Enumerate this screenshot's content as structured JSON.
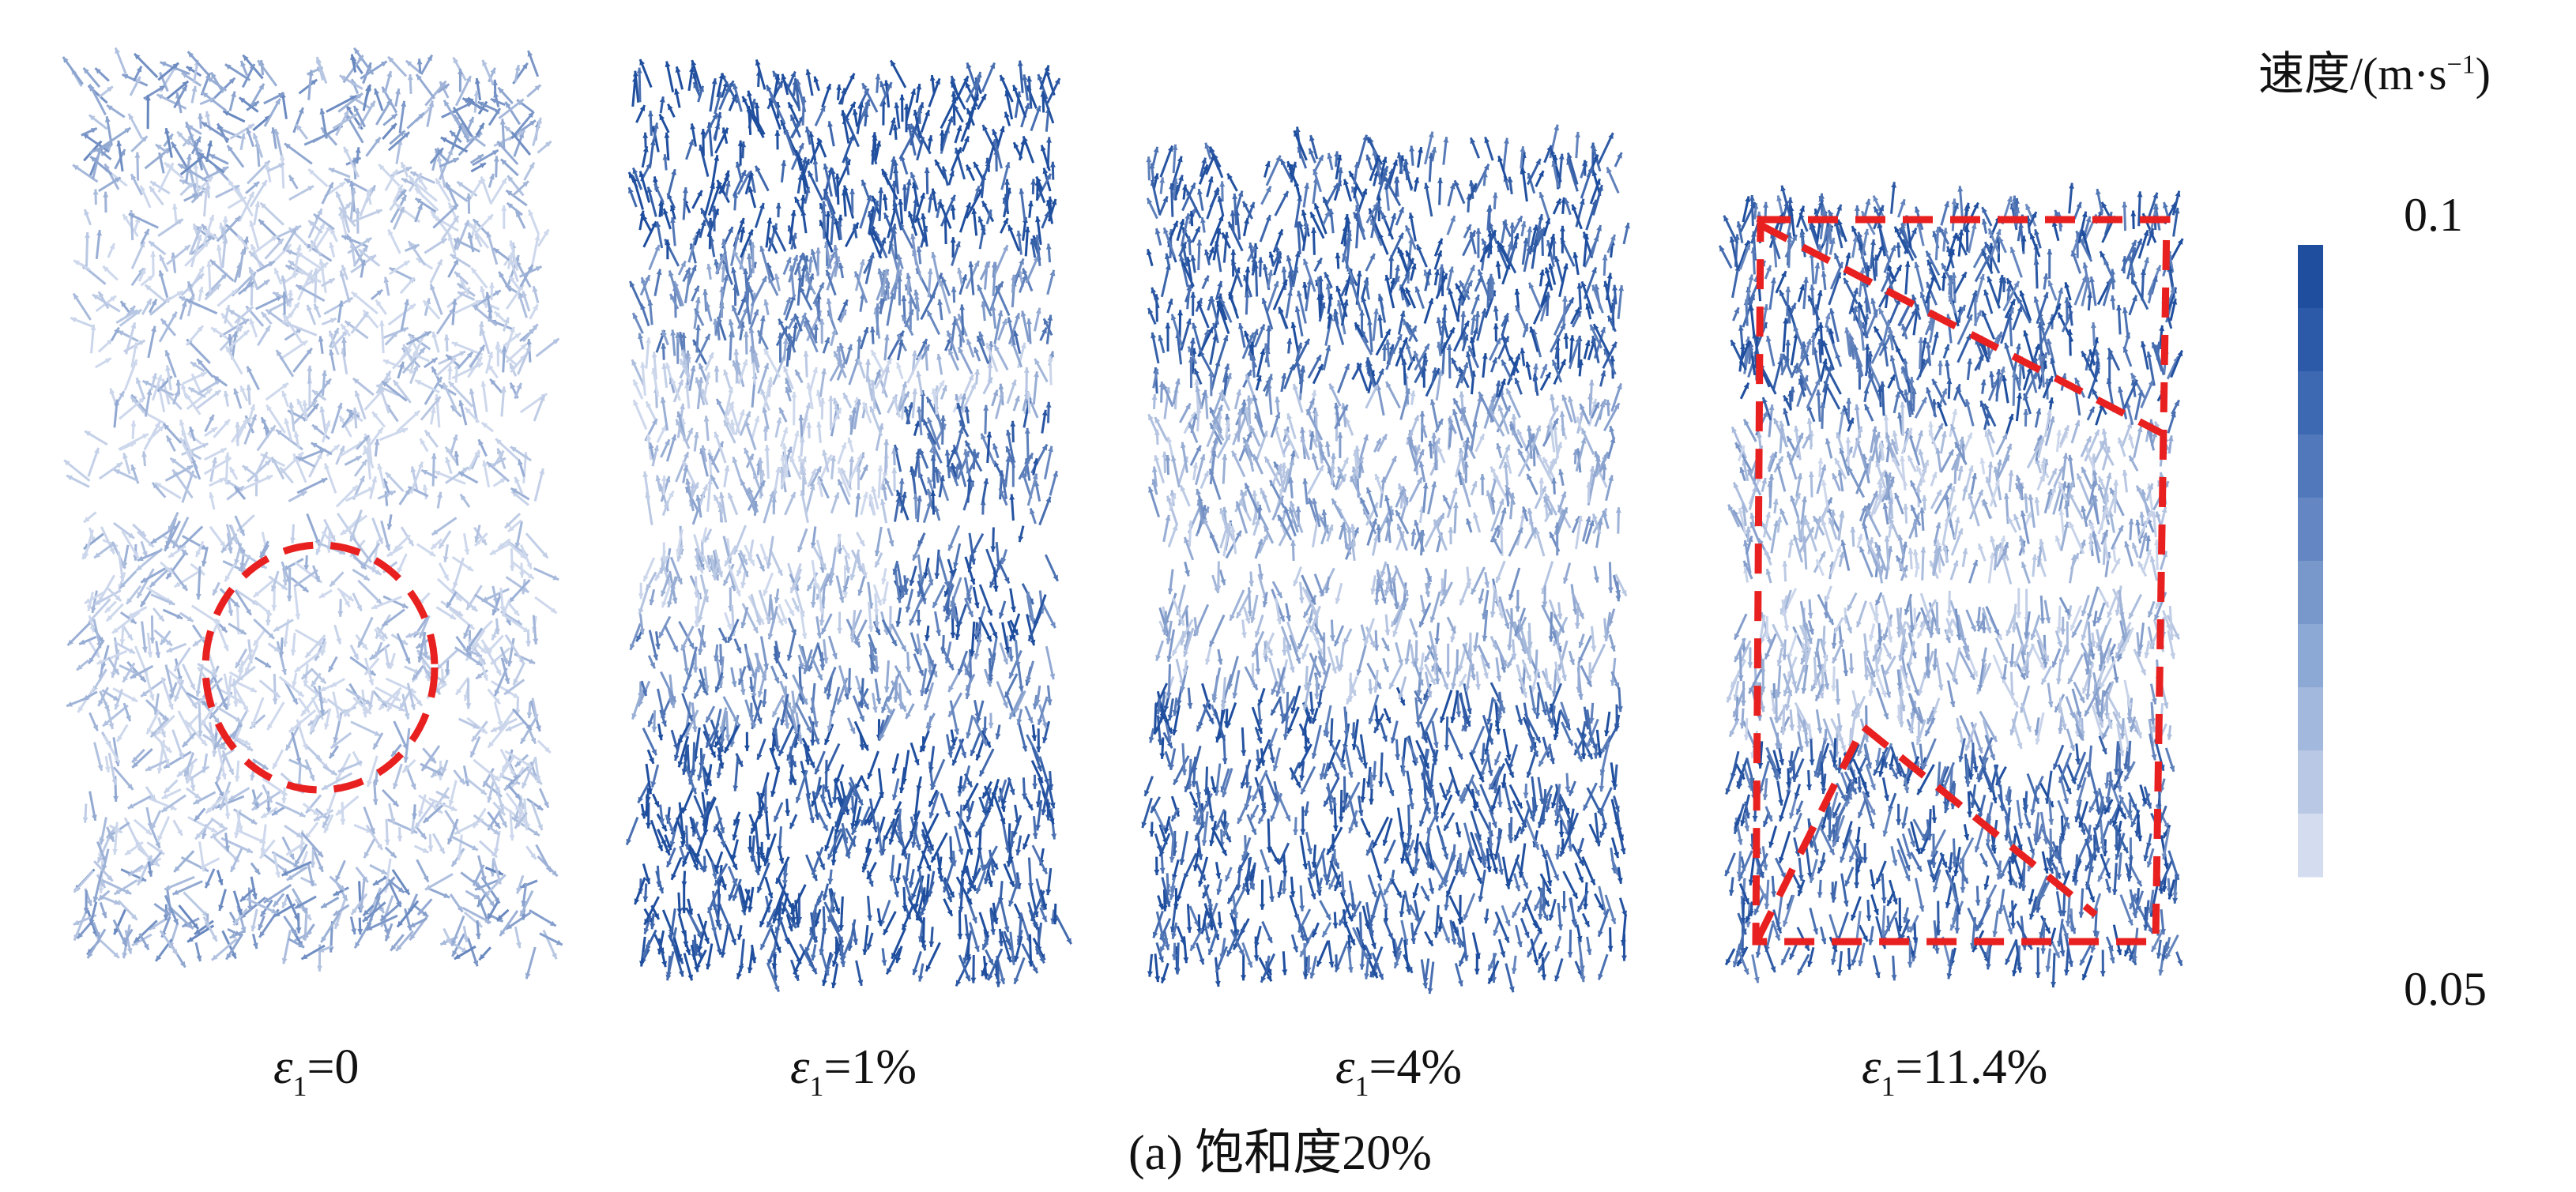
{
  "legend": {
    "title_prefix": "速度/(m·s",
    "title_exp": "−1",
    "title_suffix": ")",
    "max_label": "0.1",
    "min_label": "0.05",
    "colors": [
      "#1f4e9e",
      "#2c5aa8",
      "#3d68b2",
      "#5078bb",
      "#6487c3",
      "#7897cb",
      "#8ca8d4",
      "#a2b8dc",
      "#b8c8e5",
      "#d3ddef"
    ]
  },
  "panels": [
    {
      "eps_symbol": "ε",
      "eps_sub": "1",
      "eps_value": "=0"
    },
    {
      "eps_symbol": "ε",
      "eps_sub": "1",
      "eps_value": "=1%"
    },
    {
      "eps_symbol": "ε",
      "eps_sub": "1",
      "eps_value": "=4%"
    },
    {
      "eps_symbol": "ε",
      "eps_sub": "1",
      "eps_value": "=11.4%"
    }
  ],
  "caption": "(a) 饱和度20%",
  "colors": {
    "arrow_dark": "#1f4e9e",
    "arrow_light": "#c9d4ea",
    "annotation": "#e8201f"
  }
}
